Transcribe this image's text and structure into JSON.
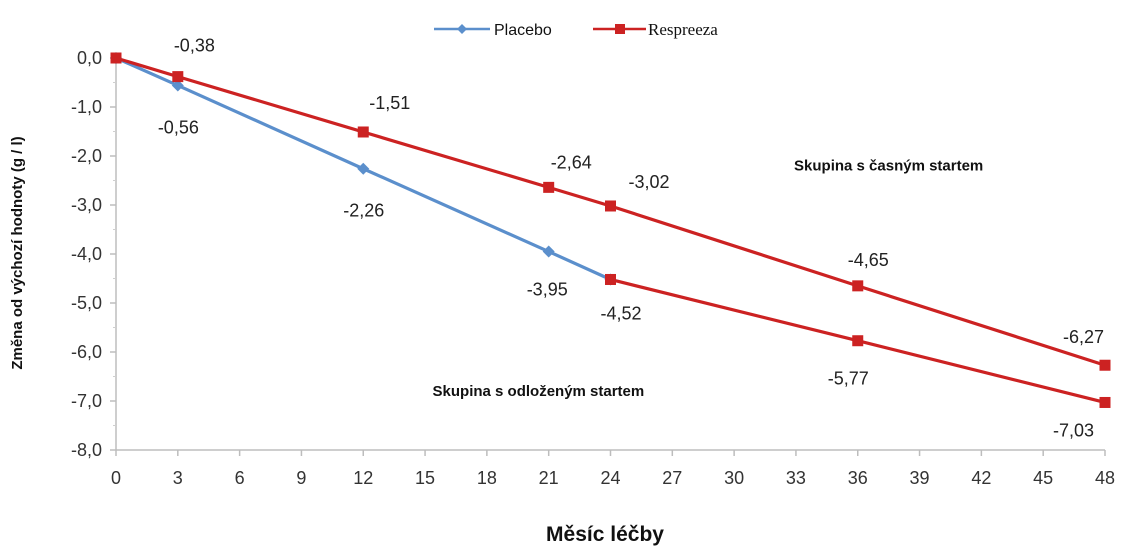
{
  "chart_data": {
    "type": "line",
    "xlabel": "Měsíc léčby",
    "ylabel": "Změna od výchozí hodnoty (g / l)",
    "xlim": [
      0,
      48
    ],
    "ylim": [
      -8,
      0
    ],
    "x_ticks": [
      "0",
      "3",
      "6",
      "9",
      "12",
      "15",
      "18",
      "21",
      "24",
      "27",
      "30",
      "33",
      "36",
      "39",
      "42",
      "45",
      "48"
    ],
    "y_ticks": [
      "0,0",
      "-1,0",
      "-2,0",
      "-3,0",
      "-4,0",
      "-5,0",
      "-6,0",
      "-7,0",
      "-8,0"
    ],
    "grid": false,
    "legend_position": "top-center",
    "series": [
      {
        "name": "Placebo",
        "color": "#5b8fcc",
        "marker": "diamond",
        "points": [
          {
            "x": 0,
            "y": 0,
            "label": ""
          },
          {
            "x": 3,
            "y": -0.56,
            "label": "-0,56"
          },
          {
            "x": 12,
            "y": -2.26,
            "label": "-2,26"
          },
          {
            "x": 21,
            "y": -3.95,
            "label": "-3,95"
          },
          {
            "x": 24,
            "y": -4.52,
            "label": "-4,52"
          }
        ]
      },
      {
        "name": "Respreeza",
        "color": "#cc2222",
        "marker": "square",
        "points": [
          {
            "x": 0,
            "y": 0,
            "label": ""
          },
          {
            "x": 3,
            "y": -0.38,
            "label": "-0,38"
          },
          {
            "x": 12,
            "y": -1.51,
            "label": "-1,51"
          },
          {
            "x": 21,
            "y": -2.64,
            "label": "-2,64"
          },
          {
            "x": 24,
            "y": -3.02,
            "label": "-3,02"
          },
          {
            "x": 36,
            "y": -4.65,
            "label": "-4,65"
          },
          {
            "x": 48,
            "y": -6.27,
            "label": "-6,27"
          }
        ]
      },
      {
        "name": "",
        "color": "#cc2222",
        "marker": "square",
        "points": [
          {
            "x": 24,
            "y": -4.52,
            "label": ""
          },
          {
            "x": 36,
            "y": -5.77,
            "label": "-5,77"
          },
          {
            "x": 48,
            "y": -7.03,
            "label": "-7,03"
          }
        ]
      }
    ],
    "annotations": [
      {
        "text": "Skupina s časným startem",
        "x": 37.5,
        "y": -2.3
      },
      {
        "text": "Skupina s odloženým startem",
        "x": 20.5,
        "y": -6.9
      }
    ]
  }
}
